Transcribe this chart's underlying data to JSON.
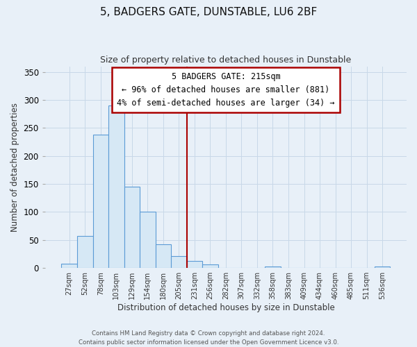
{
  "title": "5, BADGERS GATE, DUNSTABLE, LU6 2BF",
  "subtitle": "Size of property relative to detached houses in Dunstable",
  "xlabel": "Distribution of detached houses by size in Dunstable",
  "ylabel": "Number of detached properties",
  "bar_labels": [
    "27sqm",
    "52sqm",
    "78sqm",
    "103sqm",
    "129sqm",
    "154sqm",
    "180sqm",
    "205sqm",
    "231sqm",
    "256sqm",
    "282sqm",
    "307sqm",
    "332sqm",
    "358sqm",
    "383sqm",
    "409sqm",
    "434sqm",
    "460sqm",
    "485sqm",
    "511sqm",
    "536sqm"
  ],
  "bar_values": [
    8,
    57,
    238,
    290,
    145,
    101,
    42,
    21,
    13,
    6,
    0,
    0,
    0,
    3,
    0,
    0,
    0,
    0,
    0,
    0,
    3
  ],
  "bar_color": "#d6e8f5",
  "bar_edge_color": "#5b9bd5",
  "ylim": [
    0,
    360
  ],
  "yticks": [
    0,
    50,
    100,
    150,
    200,
    250,
    300,
    350
  ],
  "vline_x_index": 7.5,
  "vline_color": "#aa0000",
  "annotation_title": "5 BADGERS GATE: 215sqm",
  "annotation_line1": "← 96% of detached houses are smaller (881)",
  "annotation_line2": "4% of semi-detached houses are larger (34) →",
  "annotation_box_facecolor": "#ffffff",
  "annotation_box_edgecolor": "#aa0000",
  "grid_color": "#c8d8e8",
  "footer1": "Contains HM Land Registry data © Crown copyright and database right 2024.",
  "footer2": "Contains public sector information licensed under the Open Government Licence v3.0.",
  "background_color": "#e8f0f8"
}
